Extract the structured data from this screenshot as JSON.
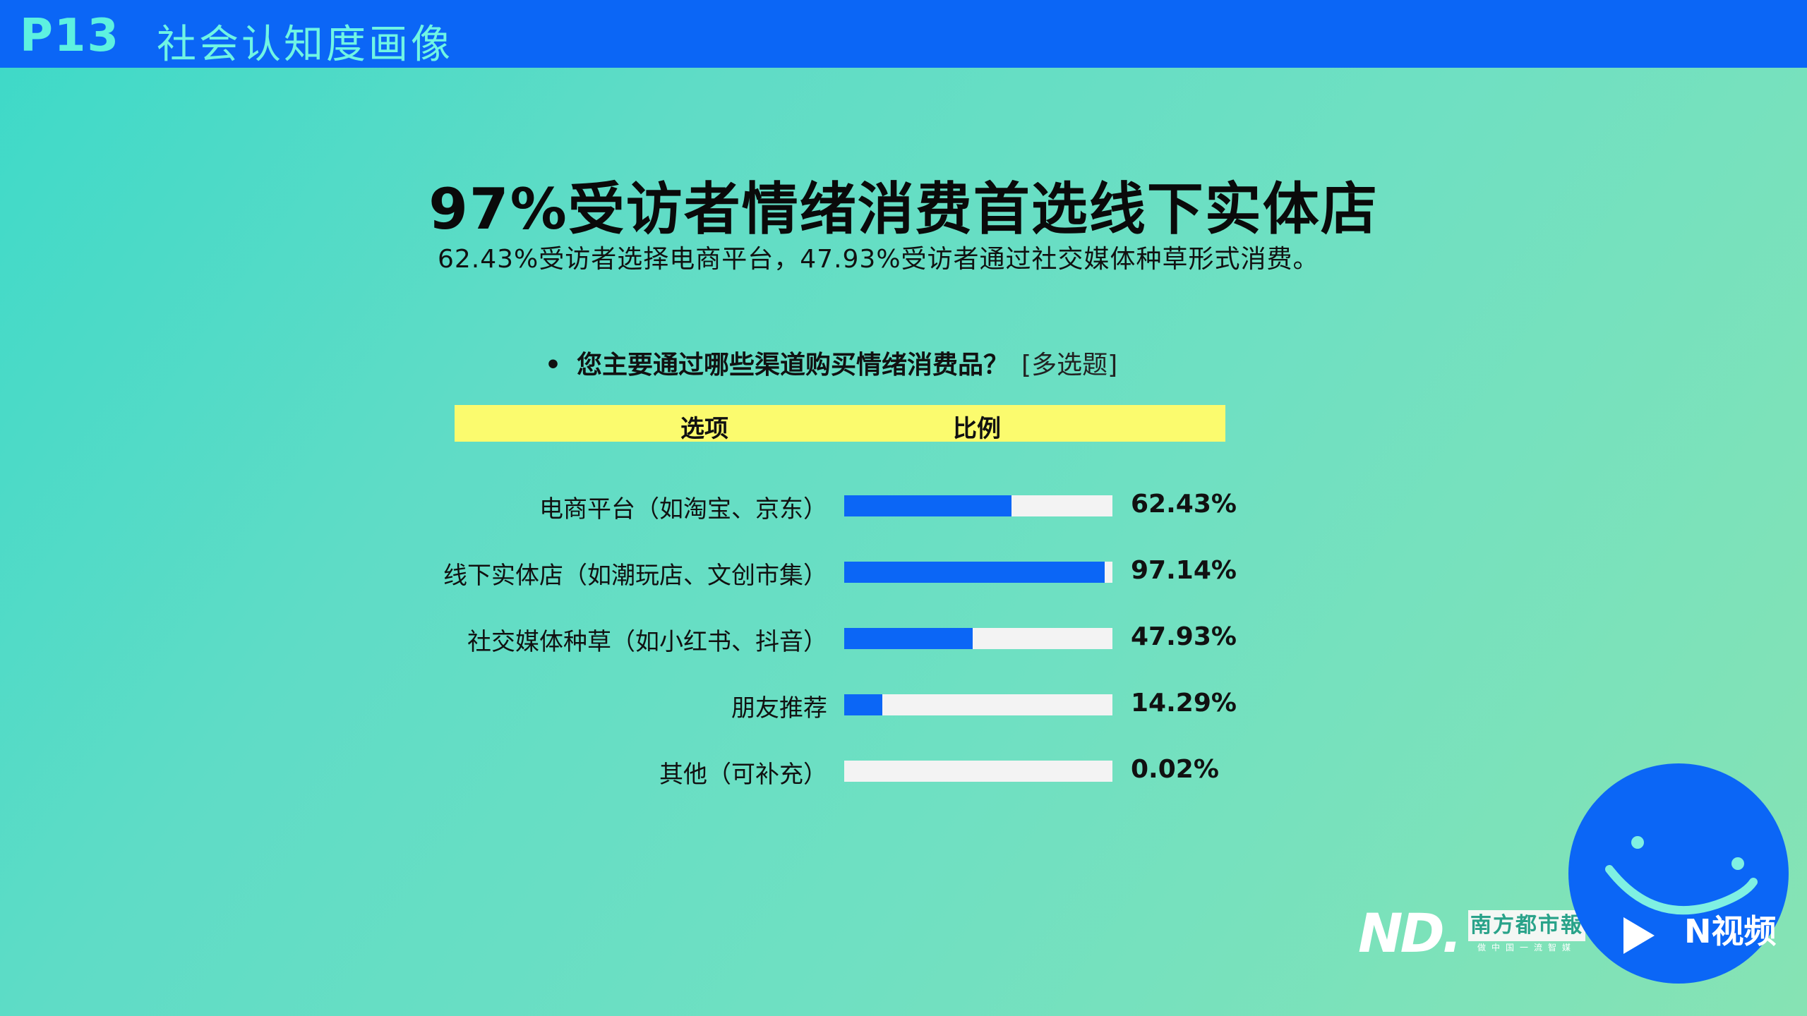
{
  "header": {
    "page_number": "P13",
    "section_title": "社会认知度画像",
    "bar_color": "#0b66f6"
  },
  "main_title": "97%受访者情绪消费首选线下实体店",
  "subtitle": "62.43%受访者选择电商平台，47.93%受访者通过社交媒体种草形式消费。",
  "question": {
    "bullet": "•",
    "text": "您主要通过哪些渠道购买情绪消费品？",
    "tag": "[多选题]"
  },
  "table_header": {
    "option": "选项",
    "ratio": "比例",
    "background": "#fbfb6e"
  },
  "chart_data": {
    "type": "bar",
    "orientation": "horizontal",
    "categories": [
      "电商平台（如淘宝、京东）",
      "线下实体店（如潮玩店、文创市集）",
      "社交媒体种草（如小红书、抖音）",
      "朋友推荐",
      "其他（可补充）"
    ],
    "values": [
      62.43,
      97.14,
      47.93,
      14.29,
      0.02
    ],
    "value_labels": [
      "62.43%",
      "97.14%",
      "47.93%",
      "14.29%",
      "0.02%"
    ],
    "xlim": [
      0,
      100
    ],
    "bar_color": "#0b66f6",
    "track_color": "#f3f3f3",
    "title": "",
    "xlabel": "",
    "ylabel": ""
  },
  "logos": {
    "nd_mark": "ND.",
    "paper_name": "南方都市報",
    "paper_slogan": "做中国一流智媒",
    "video_brand": "N视频"
  }
}
